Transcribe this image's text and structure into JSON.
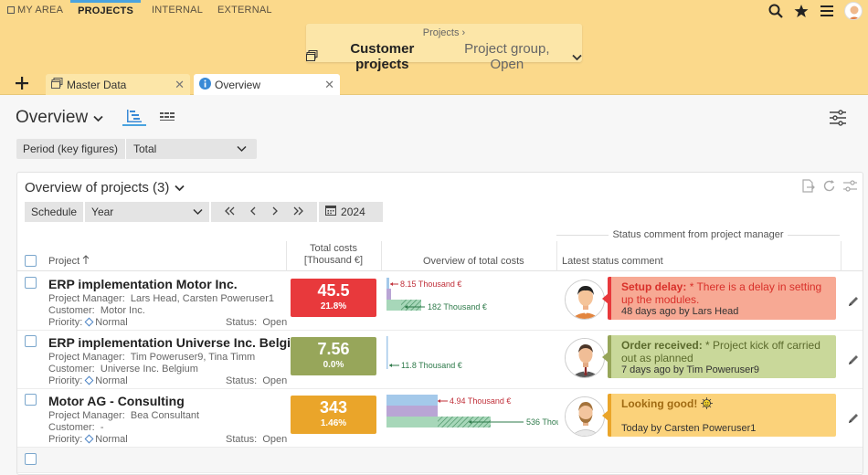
{
  "topnav": {
    "items": [
      {
        "label": "MY AREA"
      },
      {
        "label": "PROJECTS"
      },
      {
        "label": "INTERNAL"
      },
      {
        "label": "EXTERNAL"
      }
    ]
  },
  "header": {
    "breadcrumb": "Projects",
    "title": "Customer projects",
    "subtitle": "Project group, Open"
  },
  "tabs": [
    {
      "label": "Master Data"
    },
    {
      "label": "Overview"
    }
  ],
  "page": {
    "title": "Overview",
    "period_label": "Period (key figures)",
    "period_value": "Total"
  },
  "panel": {
    "title": "Overview of projects (3)",
    "schedule_label": "Schedule",
    "schedule_value": "Year",
    "year": "2024",
    "group_header": "Status comment from project manager",
    "col_project": "Project",
    "col_costs_line1": "Total costs",
    "col_costs_line2": "[Thousand €]",
    "col_overview": "Overview of total costs",
    "col_comment": "Latest status comment"
  },
  "labels": {
    "pm": "Project Manager:",
    "customer": "Customer:",
    "priority": "Priority:",
    "status": "Status:"
  },
  "projects": [
    {
      "name": "ERP implementation Motor Inc.",
      "manager": "Lars Head, Carsten Poweruser1",
      "customer": "Motor Inc.",
      "priority": "Normal",
      "status": "Open",
      "cost": "45.5",
      "cost_pct": "21.8%",
      "kpi_color": "#e8393c",
      "chart_top_label": "8.15 Thousand €",
      "chart_bottom_label": "182 Thousand €",
      "comment_title": "Setup delay:",
      "comment_text": " * There is a delay in setting up the modules.",
      "comment_by": "48 days ago by Lars Head",
      "bubble_color": "#f7a994",
      "bubble_border": "#e8393c",
      "title_color": "#d9302a"
    },
    {
      "name": "ERP implementation Universe Inc. Belgium",
      "manager": "Tim Poweruser9, Tina Timm",
      "customer": "Universe Inc. Belgium",
      "priority": "Normal",
      "status": "Open",
      "cost": "7.56",
      "cost_pct": "0.0%",
      "kpi_color": "#97a65a",
      "chart_bottom_label": "11.8 Thousand €",
      "comment_title": "Order received:",
      "comment_text": " * Project kick off carried out as planned",
      "comment_by": "7 days ago by Tim Poweruser9",
      "bubble_color": "#c9d89a",
      "bubble_border": "#97a65a",
      "title_color": "#5b6a2c"
    },
    {
      "name": "Motor AG - Consulting",
      "manager": "Bea Consultant",
      "customer": "-",
      "priority": "Normal",
      "status": "Open",
      "cost": "343",
      "cost_pct": "1.46%",
      "kpi_color": "#eaa52a",
      "chart_top_label": "4.94 Thousand €",
      "chart_bottom_label": "536 Thou",
      "comment_title": "Looking good!",
      "comment_text": "",
      "comment_by": "Today by Carsten Poweruser1",
      "bubble_color": "#fbd27a",
      "bubble_border": "#eaa52a",
      "title_color": "#a06a12"
    }
  ]
}
